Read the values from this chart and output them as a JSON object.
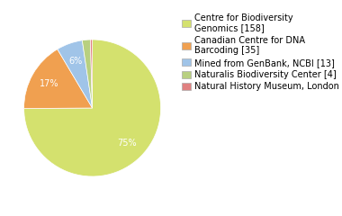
{
  "labels": [
    "Centre for Biodiversity\nGenomics [158]",
    "Canadian Centre for DNA\nBarcoding [35]",
    "Mined from GenBank, NCBI [13]",
    "Naturalis Biodiversity Center [4]",
    "Natural History Museum, London [1]"
  ],
  "values": [
    158,
    35,
    13,
    4,
    1
  ],
  "colors": [
    "#d4e16e",
    "#f0a050",
    "#a0c4e8",
    "#b8d080",
    "#e08080"
  ],
  "background_color": "#ffffff",
  "text_color": "#ffffff",
  "pct_fontsize": 7,
  "legend_fontsize": 7,
  "startangle": 90
}
